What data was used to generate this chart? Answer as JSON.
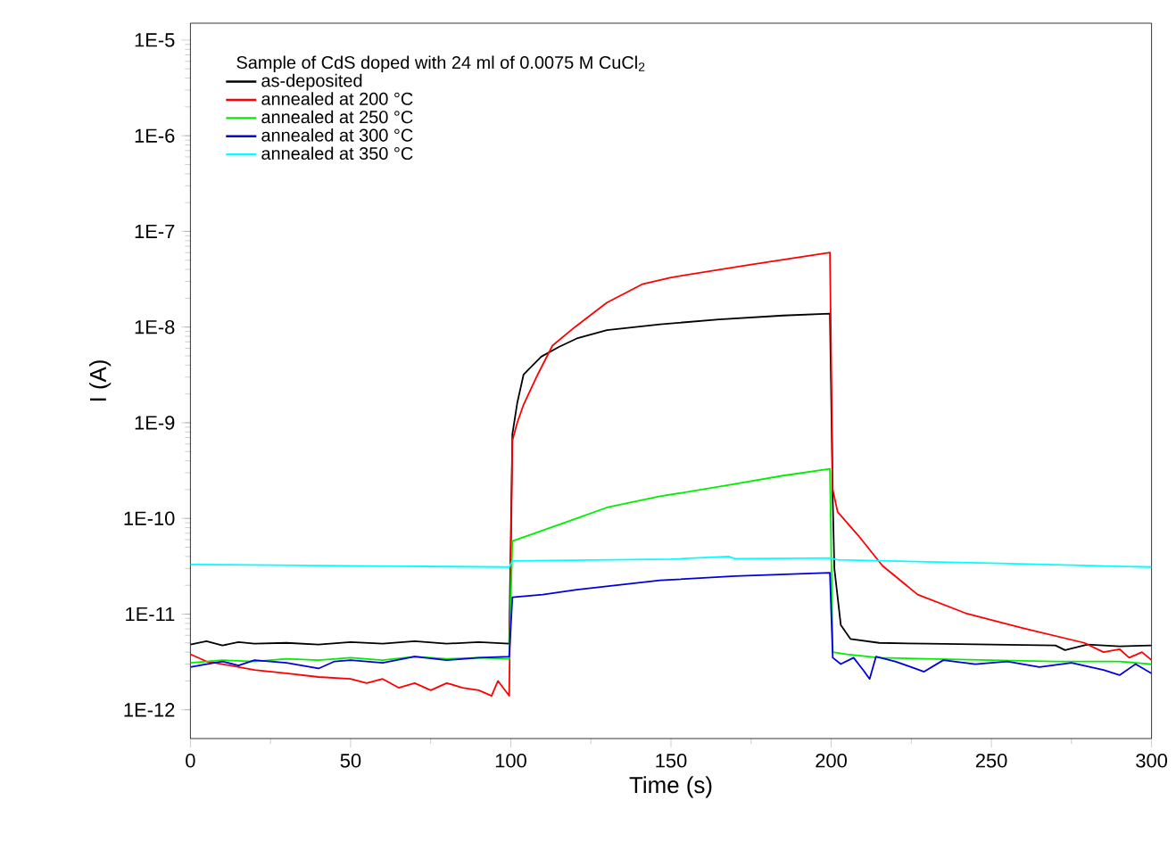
{
  "chart_data": {
    "type": "line",
    "legend_title": "Sample of CdS doped with 24 ml of 0.0075 M CuCl$_{2}$",
    "xlabel": "Time (s)",
    "ylabel": "I (A)",
    "log": "y",
    "grid": false,
    "legend": "top left",
    "marker": "none",
    "line_style": "solid",
    "xlim": [
      0,
      300
    ],
    "xticks": [
      0,
      50,
      100,
      150,
      200,
      250,
      300
    ],
    "ylim": [
      5e-13,
      1.5e-05
    ],
    "yticks": [
      {
        "value": 1e-12,
        "label": "1E-12"
      },
      {
        "value": 1e-11,
        "label": "1E-11"
      },
      {
        "value": 1e-10,
        "label": "1E-10"
      },
      {
        "value": 1e-09,
        "label": "1E-9"
      },
      {
        "value": 1e-08,
        "label": "1E-8"
      },
      {
        "value": 1e-07,
        "label": "1E-7"
      },
      {
        "value": 1e-06,
        "label": "1E-6"
      },
      {
        "value": 1e-05,
        "label": "1E-5"
      }
    ],
    "series": [
      {
        "name": "as-deposited",
        "color": "#000000",
        "x": [
          0,
          5,
          10,
          15,
          20,
          30,
          40,
          50,
          60,
          70,
          80,
          90,
          99.5,
          100.5,
          102,
          104,
          109.5,
          115,
          120.6,
          130,
          146.6,
          165,
          185,
          199.6,
          200.5,
          201,
          203,
          206,
          215,
          230,
          250,
          270,
          273,
          280,
          290,
          300
        ],
        "values": [
          4.8e-12,
          5.2e-12,
          4.7e-12,
          5.1e-12,
          4.9e-12,
          5e-12,
          4.8e-12,
          5.1e-12,
          4.9e-12,
          5.2e-12,
          4.9e-12,
          5.1e-12,
          4.9e-12,
          7.6e-10,
          1.6e-09,
          3.2e-09,
          4.9e-09,
          6.2e-09,
          7.6e-09,
          9.3e-09,
          1.07e-08,
          1.2e-08,
          1.32e-08,
          1.38e-08,
          1.5e-10,
          3e-11,
          7.7e-12,
          5.5e-12,
          5e-12,
          4.9e-12,
          4.8e-12,
          4.7e-12,
          4.2e-12,
          4.8e-12,
          4.6e-12,
          4.7e-12
        ]
      },
      {
        "name": "annealed at 200 °C",
        "color": "#ff0000",
        "x": [
          0,
          5,
          10,
          20,
          30,
          40,
          50,
          55,
          60,
          65,
          70,
          75,
          80,
          85,
          90,
          94,
          96,
          99.5,
          100.5,
          102,
          104,
          108,
          113,
          120,
          130,
          141,
          150,
          175,
          199.6,
          200.5,
          202,
          208.5,
          216,
          227,
          242,
          260,
          279,
          285,
          290,
          293,
          297,
          300
        ],
        "values": [
          3.8e-12,
          3.2e-12,
          3e-12,
          2.6e-12,
          2.4e-12,
          2.2e-12,
          2.1e-12,
          1.9e-12,
          2.1e-12,
          1.7e-12,
          1.9e-12,
          1.6e-12,
          1.9e-12,
          1.7e-12,
          1.6e-12,
          1.4e-12,
          2e-12,
          1.4e-12,
          6.5e-10,
          1e-09,
          1.55e-09,
          3e-09,
          6.4e-09,
          1e-08,
          1.8e-08,
          2.8e-08,
          3.3e-08,
          4.5e-08,
          6e-08,
          2e-10,
          1.17e-10,
          6.6e-11,
          3.2e-11,
          1.6e-11,
          1.02e-11,
          7.1e-12,
          5e-12,
          4e-12,
          4.3e-12,
          3.5e-12,
          4e-12,
          3.3e-12
        ]
      },
      {
        "name": "annealed at 250 °C",
        "color": "#00ee00",
        "x": [
          0,
          10,
          20,
          30,
          40,
          50,
          60,
          70,
          80,
          90,
          99.5,
          100.5,
          110,
          120.6,
          130,
          146.6,
          167,
          185,
          199.6,
          200.5,
          205,
          215,
          230,
          250,
          270,
          290,
          300
        ],
        "values": [
          3.1e-12,
          3.3e-12,
          3.2e-12,
          3.4e-12,
          3.3e-12,
          3.5e-12,
          3.3e-12,
          3.6e-12,
          3.4e-12,
          3.5e-12,
          3.4e-12,
          5.8e-11,
          7.5e-11,
          1e-10,
          1.3e-10,
          1.7e-10,
          2.2e-10,
          2.8e-10,
          3.3e-10,
          4e-12,
          3.8e-12,
          3.5e-12,
          3.4e-12,
          3.3e-12,
          3.2e-12,
          3.2e-12,
          3e-12
        ]
      },
      {
        "name": "annealed at 300 °C",
        "color": "#0000dd",
        "x": [
          0,
          5,
          10,
          15,
          20,
          30,
          40,
          45,
          50,
          60,
          70,
          80,
          90,
          99.5,
          100.5,
          110,
          120.6,
          146.6,
          170,
          199.6,
          200.5,
          203,
          207,
          210,
          212,
          214,
          220,
          229,
          235,
          245,
          255,
          265,
          275,
          285,
          290,
          295,
          300
        ],
        "values": [
          2.8e-12,
          3e-12,
          3.2e-12,
          2.9e-12,
          3.3e-12,
          3.1e-12,
          2.7e-12,
          3.2e-12,
          3.3e-12,
          3.1e-12,
          3.6e-12,
          3.3e-12,
          3.5e-12,
          3.6e-12,
          1.5e-11,
          1.6e-11,
          1.8e-11,
          2.25e-11,
          2.5e-11,
          2.7e-11,
          3.5e-12,
          3e-12,
          3.5e-12,
          2.6e-12,
          2.1e-12,
          3.6e-12,
          3.2e-12,
          2.5e-12,
          3.3e-12,
          3e-12,
          3.2e-12,
          2.8e-12,
          3.1e-12,
          2.6e-12,
          2.3e-12,
          3e-12,
          2.4e-12
        ]
      },
      {
        "name": "annealed at 350 °C",
        "color": "#00ffff",
        "x": [
          0,
          50,
          99.5,
          100.5,
          150,
          168,
          170,
          199.6,
          202,
          250,
          300
        ],
        "values": [
          3.3e-11,
          3.2e-11,
          3.1e-11,
          3.6e-11,
          3.75e-11,
          4e-11,
          3.8e-11,
          3.85e-11,
          3.7e-11,
          3.4e-11,
          3.1e-11
        ]
      }
    ]
  }
}
